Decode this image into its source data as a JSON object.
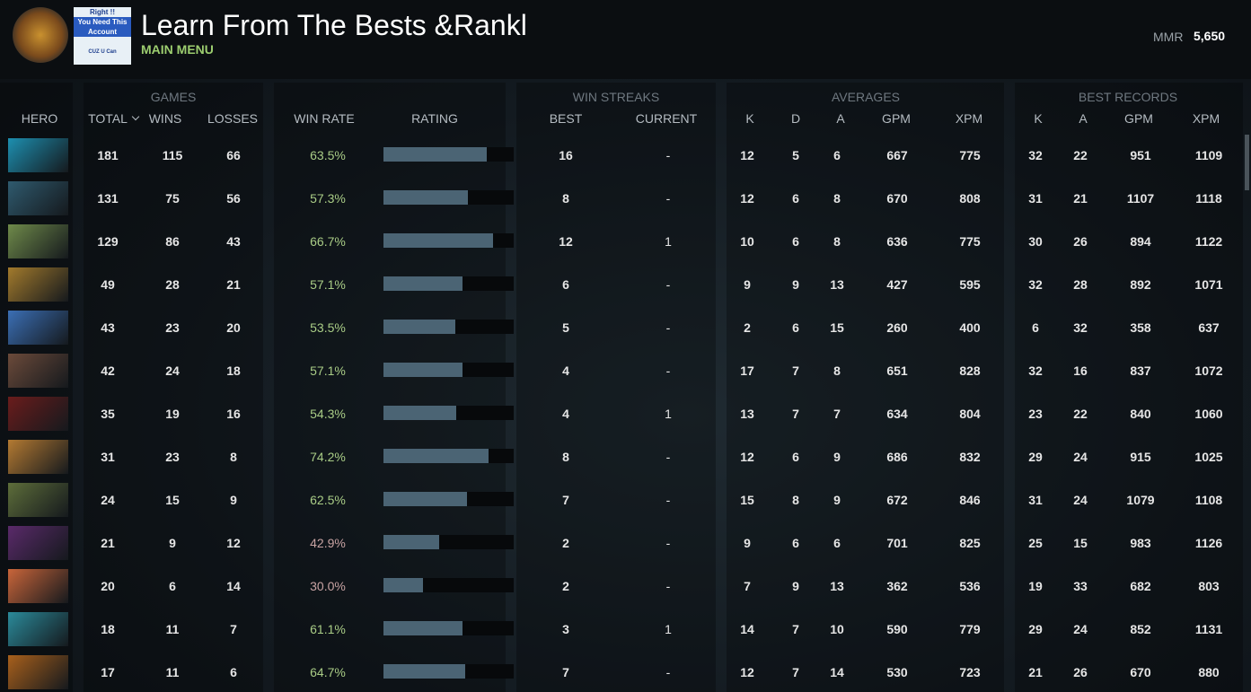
{
  "header": {
    "badge": [
      "Right !!",
      "You Need This",
      "Account",
      "CUZ U Can"
    ],
    "title": "Learn From The Bests &Rankl",
    "subtitle": "MAIN MENU",
    "mmr_label": "MMR",
    "mmr": "5,650"
  },
  "table": {
    "groups": [
      "GAMES",
      "WIN STREAKS",
      "AVERAGES",
      "BEST RECORDS"
    ],
    "columns": [
      "HERO",
      "TOTAL",
      "WINS",
      "LOSSES",
      "WIN RATE",
      "RATING",
      "BEST",
      "CURRENT",
      "K",
      "D",
      "A",
      "GPM",
      "XPM",
      "K",
      "A",
      "GPM",
      "XPM"
    ],
    "rows": [
      [
        181,
        115,
        66,
        "63.5%",
        16,
        "-",
        12,
        5,
        6,
        667,
        775,
        32,
        22,
        951,
        1109
      ],
      [
        131,
        75,
        56,
        "57.3%",
        8,
        "-",
        12,
        6,
        8,
        670,
        808,
        31,
        21,
        1107,
        1118
      ],
      [
        129,
        86,
        43,
        "66.7%",
        12,
        1,
        10,
        6,
        8,
        636,
        775,
        30,
        26,
        894,
        1122
      ],
      [
        49,
        28,
        21,
        "57.1%",
        6,
        "-",
        9,
        9,
        13,
        427,
        595,
        32,
        28,
        892,
        1071
      ],
      [
        43,
        23,
        20,
        "53.5%",
        5,
        "-",
        2,
        6,
        15,
        260,
        400,
        6,
        32,
        358,
        637
      ],
      [
        42,
        24,
        18,
        "57.1%",
        4,
        "-",
        17,
        7,
        8,
        651,
        828,
        32,
        16,
        837,
        1072
      ],
      [
        35,
        19,
        16,
        "54.3%",
        4,
        1,
        13,
        7,
        7,
        634,
        804,
        23,
        22,
        840,
        1060
      ],
      [
        31,
        23,
        8,
        "74.2%",
        8,
        "-",
        12,
        6,
        9,
        686,
        832,
        29,
        24,
        915,
        1025
      ],
      [
        24,
        15,
        9,
        "62.5%",
        7,
        "-",
        15,
        8,
        9,
        672,
        846,
        31,
        24,
        1079,
        1108
      ],
      [
        21,
        9,
        12,
        "42.9%",
        2,
        "-",
        9,
        6,
        6,
        701,
        825,
        25,
        15,
        983,
        1126
      ],
      [
        20,
        6,
        14,
        "30.0%",
        2,
        "-",
        7,
        9,
        13,
        362,
        536,
        19,
        33,
        682,
        803
      ],
      [
        18,
        11,
        7,
        "61.1%",
        3,
        1,
        14,
        7,
        10,
        590,
        779,
        29,
        24,
        852,
        1131
      ],
      [
        17,
        11,
        6,
        "64.7%",
        7,
        "-",
        12,
        7,
        14,
        530,
        723,
        21,
        26,
        670,
        880
      ]
    ],
    "ratings": [
      0.79,
      0.65,
      0.84,
      0.61,
      0.55,
      0.61,
      0.56,
      0.81,
      0.64,
      0.43,
      0.3,
      0.61,
      0.63
    ]
  }
}
